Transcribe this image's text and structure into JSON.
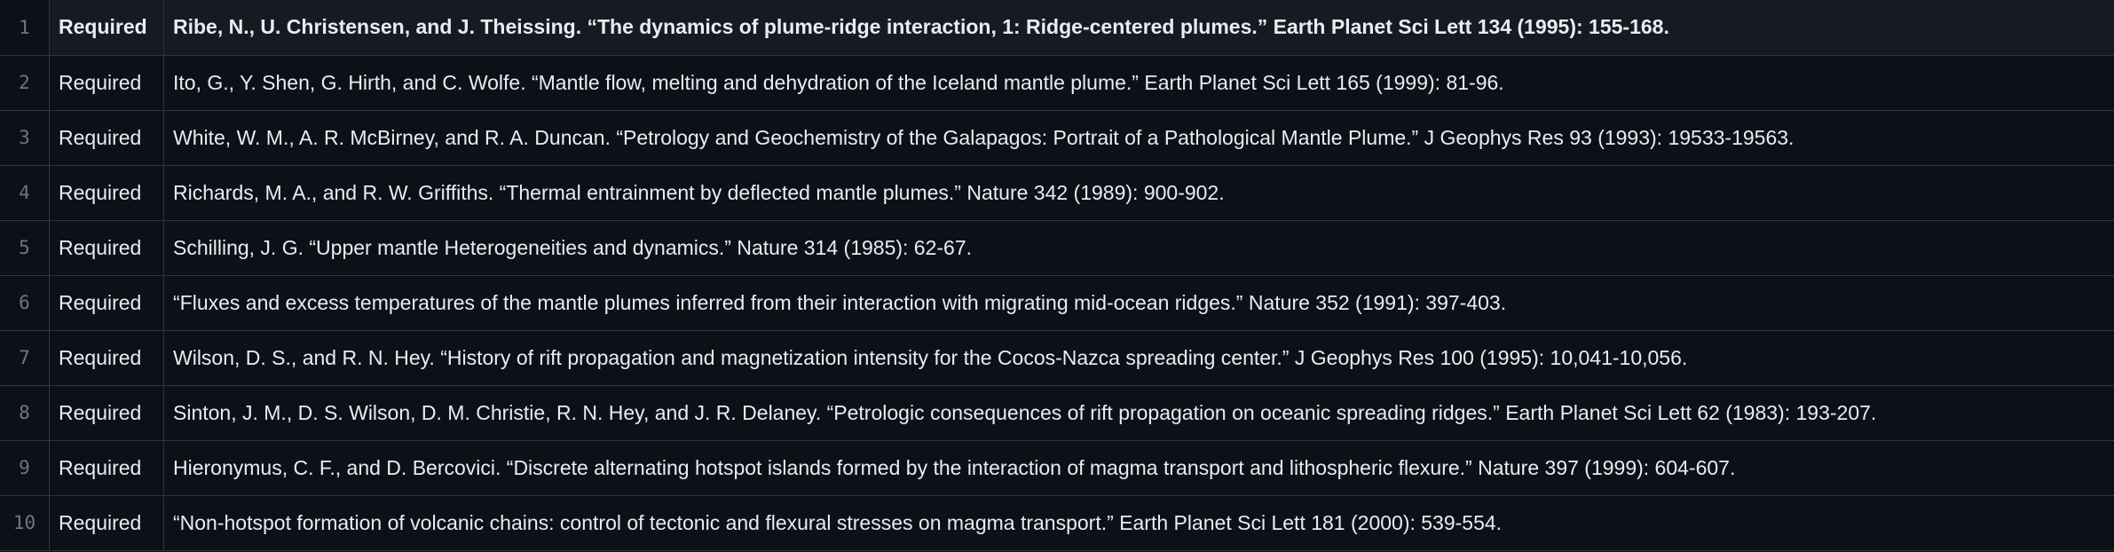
{
  "rows": [
    {
      "line": "1",
      "status": "Required",
      "citation": "Ribe, N., U. Christensen, and J. Theissing. “The dynamics of plume-ridge interaction, 1: Ridge-centered plumes.” Earth Planet Sci Lett 134 (1995): 155-168."
    },
    {
      "line": "2",
      "status": "Required",
      "citation": "Ito, G., Y. Shen, G. Hirth, and C. Wolfe. “Mantle flow, melting and dehydration of the Iceland mantle plume.” Earth Planet Sci Lett 165 (1999): 81-96."
    },
    {
      "line": "3",
      "status": "Required",
      "citation": "White, W. M., A. R. McBirney, and R. A. Duncan. “Petrology and Geochemistry of the Galapagos: Portrait of a Pathological Mantle Plume.” J Geophys Res 93 (1993): 19533-19563."
    },
    {
      "line": "4",
      "status": "Required",
      "citation": "Richards, M. A., and R. W. Griffiths. “Thermal entrainment by deflected mantle plumes.” Nature 342 (1989): 900-902."
    },
    {
      "line": "5",
      "status": "Required",
      "citation": "Schilling, J. G. “Upper mantle Heterogeneities and dynamics.” Nature 314 (1985): 62-67."
    },
    {
      "line": "6",
      "status": "Required",
      "citation": "“Fluxes and excess temperatures of the mantle plumes inferred from their interaction with migrating mid-ocean ridges.” Nature 352 (1991): 397-403."
    },
    {
      "line": "7",
      "status": "Required",
      "citation": "Wilson, D. S., and R. N. Hey. “History of rift propagation and magnetization intensity for the Cocos-Nazca spreading center.” J Geophys Res 100 (1995): 10,041-10,056."
    },
    {
      "line": "8",
      "status": "Required",
      "citation": "Sinton, J. M., D. S. Wilson, D. M. Christie, R. N. Hey, and J. R. Delaney. “Petrologic consequences of rift propagation on oceanic spreading ridges.” Earth Planet Sci Lett 62 (1983): 193-207."
    },
    {
      "line": "9",
      "status": "Required",
      "citation": "Hieronymus, C. F., and D. Bercovici. “Discrete alternating hotspot islands formed by the interaction of magma transport and lithospheric flexure.” Nature 397 (1999): 604-607."
    },
    {
      "line": "10",
      "status": "Required",
      "citation": "“Non-hotspot formation of volcanic chains: control of tectonic and flexural stresses on magma transport.” Earth Planet Sci Lett 181 (2000): 539-554."
    }
  ]
}
